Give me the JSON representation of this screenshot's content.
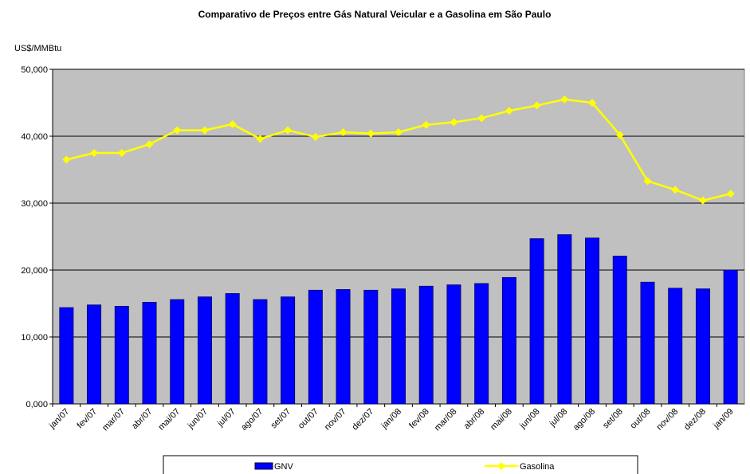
{
  "chart_data": {
    "type": "bar",
    "title": "Comparativo de Preços entre Gás Natural Veicular e a Gasolina em São Paulo",
    "y_label": "US$/MMBtu",
    "categories": [
      "jan/07",
      "fev/07",
      "mar/07",
      "abr/07",
      "mai/07",
      "jun/07",
      "jul/07",
      "ago/07",
      "set/07",
      "out/07",
      "nov/07",
      "dez/07",
      "jan/08",
      "fev/08",
      "mar/08",
      "abr/08",
      "mai/08",
      "jun/08",
      "jul/08",
      "ago/08",
      "set/08",
      "out/08",
      "nov/08",
      "dez/08",
      "jan/09"
    ],
    "series": [
      {
        "name": "GNV",
        "type": "bar",
        "color": "#0000ff",
        "values": [
          14.4,
          14.8,
          14.6,
          15.2,
          15.6,
          16.0,
          16.5,
          15.6,
          16.0,
          17.0,
          17.1,
          17.0,
          17.2,
          17.6,
          17.8,
          18.0,
          18.9,
          24.7,
          25.3,
          24.8,
          22.1,
          18.2,
          17.3,
          17.2,
          20.0
        ]
      },
      {
        "name": "Gasolina",
        "type": "line",
        "color": "#ffff00",
        "values": [
          36.5,
          37.5,
          37.5,
          38.8,
          40.9,
          40.9,
          41.8,
          39.6,
          40.9,
          39.9,
          40.6,
          40.4,
          40.6,
          41.7,
          42.1,
          42.7,
          43.8,
          44.6,
          45.5,
          45.0,
          40.2,
          33.3,
          32.0,
          30.4,
          31.4
        ]
      }
    ],
    "ylim": [
      0,
      50
    ],
    "yticks": [
      {
        "value": 0,
        "label": "0,000"
      },
      {
        "value": 10,
        "label": "10,000"
      },
      {
        "value": 20,
        "label": "20,000"
      },
      {
        "value": 30,
        "label": "30,000"
      },
      {
        "value": 40,
        "label": "40,000"
      },
      {
        "value": 50,
        "label": "50,000"
      }
    ],
    "grid": true,
    "legend": "bottom",
    "plot_background": "#c0c0c0"
  }
}
